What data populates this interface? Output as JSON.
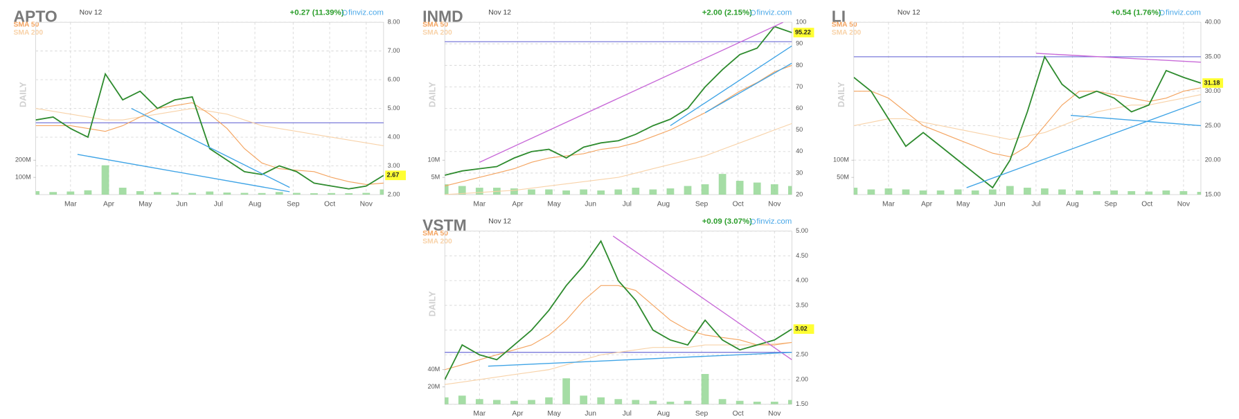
{
  "chart_data": [
    {
      "type": "line",
      "title": "APTO",
      "date": "Nov 12",
      "change": "+0.27 (11.39%)",
      "source": "finviz.com",
      "ylabel": "DAILY",
      "x": [
        0,
        1,
        2,
        3,
        4,
        5,
        6,
        7,
        8,
        9,
        10,
        11,
        12,
        13,
        14,
        15,
        16,
        17,
        18,
        19,
        20
      ],
      "xlim": [
        0,
        20
      ],
      "xticks": [
        {
          "value": 2,
          "label": "Mar"
        },
        {
          "value": 4.2,
          "label": "Apr"
        },
        {
          "value": 6.3,
          "label": "May"
        },
        {
          "value": 8.4,
          "label": "Jun"
        },
        {
          "value": 10.5,
          "label": "Jul"
        },
        {
          "value": 12.6,
          "label": "Aug"
        },
        {
          "value": 14.8,
          "label": "Sep"
        },
        {
          "value": 16.9,
          "label": "Oct"
        },
        {
          "value": 19,
          "label": "Nov"
        }
      ],
      "ylim": [
        2,
        8
      ],
      "yticks": [
        {
          "value": 2,
          "label": "2.00"
        },
        {
          "value": 3,
          "label": "3.00"
        },
        {
          "value": 4,
          "label": "4.00"
        },
        {
          "value": 5,
          "label": "5.00"
        },
        {
          "value": 6,
          "label": "6.00"
        },
        {
          "value": 7,
          "label": "7.00"
        },
        {
          "value": 8,
          "label": "8.00"
        }
      ],
      "grid": true,
      "series": [
        {
          "color": "#2e8b2e",
          "values": [
            4.6,
            4.7,
            4.3,
            4.0,
            6.2,
            5.3,
            5.6,
            5.0,
            5.3,
            5.4,
            3.6,
            3.2,
            2.8,
            2.7,
            3.0,
            2.8,
            2.4,
            2.3,
            2.2,
            2.3,
            2.67
          ]
        },
        {
          "name": "SMA 50",
          "color": "#f4a460",
          "values": [
            4.4,
            4.4,
            4.4,
            4.3,
            4.2,
            4.4,
            4.7,
            5.0,
            5.1,
            5.2,
            4.8,
            4.3,
            3.6,
            3.1,
            2.9,
            2.85,
            2.8,
            2.6,
            2.45,
            2.35,
            2.4
          ]
        },
        {
          "name": "SMA 200",
          "color": "#f8d2a8",
          "values": [
            5.0,
            4.9,
            4.8,
            4.7,
            4.6,
            4.6,
            4.7,
            4.8,
            4.9,
            5.0,
            4.9,
            4.8,
            4.6,
            4.4,
            4.3,
            4.2,
            4.1,
            4.0,
            3.9,
            3.8,
            3.7
          ]
        }
      ],
      "price_label": {
        "value": 2.67,
        "label": "2.67"
      },
      "hlines": [
        {
          "value": 4.5,
          "color": "#6b6bd6"
        }
      ],
      "trendlines": [
        {
          "color": "#3fa4e6",
          "x": [
            2.4,
            14.6
          ],
          "y": [
            3.4,
            2.1
          ]
        },
        {
          "color": "#3fa4e6",
          "x": [
            5.5,
            14.6
          ],
          "y": [
            5.0,
            2.25
          ]
        }
      ],
      "volume": {
        "color": "#8fd48f",
        "vlim": [
          0,
          1000000000
        ],
        "ticks": [
          {
            "value": 100000000,
            "label": "100M"
          },
          {
            "value": 200000000,
            "label": "200M"
          }
        ],
        "values": [
          20000000,
          15000000,
          18000000,
          25000000,
          170000000,
          40000000,
          20000000,
          15000000,
          12000000,
          10000000,
          18000000,
          12000000,
          10000000,
          9000000,
          15000000,
          10000000,
          8000000,
          9000000,
          8000000,
          10000000,
          30000000
        ]
      }
    },
    {
      "type": "line",
      "title": "INMD",
      "date": "Nov 12",
      "change": "+2.00 (2.15%)",
      "source": "finviz.com",
      "ylabel": "DAILY",
      "x": [
        0,
        1,
        2,
        3,
        4,
        5,
        6,
        7,
        8,
        9,
        10,
        11,
        12,
        13,
        14,
        15,
        16,
        17,
        18,
        19,
        20
      ],
      "xlim": [
        0,
        20
      ],
      "xticks": [
        {
          "value": 2,
          "label": "Mar"
        },
        {
          "value": 4.2,
          "label": "Apr"
        },
        {
          "value": 6.3,
          "label": "May"
        },
        {
          "value": 8.4,
          "label": "Jun"
        },
        {
          "value": 10.5,
          "label": "Jul"
        },
        {
          "value": 12.6,
          "label": "Aug"
        },
        {
          "value": 14.8,
          "label": "Sep"
        },
        {
          "value": 16.9,
          "label": "Oct"
        },
        {
          "value": 19,
          "label": "Nov"
        }
      ],
      "ylim": [
        20,
        100
      ],
      "yticks": [
        20,
        30,
        40,
        50,
        60,
        70,
        80,
        90,
        100
      ],
      "grid": true,
      "series": [
        {
          "color": "#2e8b2e",
          "values": [
            29,
            31,
            32,
            33,
            37,
            40,
            41,
            37,
            42,
            44,
            45,
            48,
            52,
            55,
            60,
            70,
            78,
            85,
            88,
            98,
            95.22
          ]
        },
        {
          "name": "SMA 50",
          "color": "#f4a460",
          "values": [
            24,
            26,
            28,
            30,
            32,
            35,
            37,
            38,
            39,
            41,
            42,
            44,
            47,
            50,
            54,
            58,
            63,
            68,
            72,
            77,
            80
          ]
        },
        {
          "name": "SMA 200",
          "color": "#f8d2a8",
          "values": [
            20,
            20.5,
            21,
            21.5,
            22,
            23,
            24,
            25,
            26,
            27,
            28,
            30,
            32,
            34,
            36,
            38,
            41,
            44,
            47,
            50,
            53
          ]
        }
      ],
      "price_label": {
        "value": 95.22,
        "label": "95.22"
      },
      "hlines": [
        {
          "value": 91,
          "color": "#6b6bd6"
        }
      ],
      "trendlines": [
        {
          "color": "#c86ad8",
          "x": [
            2,
            19.5
          ],
          "y": [
            35,
            100
          ]
        },
        {
          "color": "#3fa4e6",
          "x": [
            13,
            20
          ],
          "y": [
            52,
            89
          ]
        },
        {
          "color": "#3fa4e6",
          "x": [
            15,
            20
          ],
          "y": [
            58,
            81
          ]
        }
      ],
      "volume": {
        "color": "#8fd48f",
        "vlim": [
          0,
          50000000
        ],
        "ticks": [
          {
            "value": 5000000,
            "label": "5M"
          },
          {
            "value": 10000000,
            "label": "10M"
          }
        ],
        "values": [
          3000000,
          2500000,
          2000000,
          2000000,
          1800000,
          1500000,
          1500000,
          1200000,
          1500000,
          1200000,
          1500000,
          2000000,
          1500000,
          1800000,
          2500000,
          3000000,
          6000000,
          4000000,
          3500000,
          3000000,
          2500000
        ]
      }
    },
    {
      "type": "line",
      "title": "LI",
      "date": "Nov 12",
      "change": "+0.54 (1.76%)",
      "source": "finviz.com",
      "ylabel": "DAILY",
      "x": [
        0,
        1,
        2,
        3,
        4,
        5,
        6,
        7,
        8,
        9,
        10,
        11,
        12,
        13,
        14,
        15,
        16,
        17,
        18,
        19,
        20
      ],
      "xlim": [
        0,
        20
      ],
      "xticks": [
        {
          "value": 2,
          "label": "Mar"
        },
        {
          "value": 4.2,
          "label": "Apr"
        },
        {
          "value": 6.3,
          "label": "May"
        },
        {
          "value": 8.4,
          "label": "Jun"
        },
        {
          "value": 10.5,
          "label": "Jul"
        },
        {
          "value": 12.6,
          "label": "Aug"
        },
        {
          "value": 14.8,
          "label": "Sep"
        },
        {
          "value": 16.9,
          "label": "Oct"
        },
        {
          "value": 19,
          "label": "Nov"
        }
      ],
      "ylim": [
        15,
        40
      ],
      "yticks": [
        {
          "value": 15,
          "label": "15.00"
        },
        {
          "value": 20,
          "label": "20.00"
        },
        {
          "value": 25,
          "label": "25.00"
        },
        {
          "value": 30,
          "label": "30.00"
        },
        {
          "value": 35,
          "label": "35.00"
        },
        {
          "value": 40,
          "label": "40.00"
        }
      ],
      "grid": true,
      "series": [
        {
          "color": "#2e8b2e",
          "values": [
            32,
            30,
            26,
            22,
            24,
            22,
            20,
            18,
            16,
            20,
            27,
            35,
            31,
            29,
            30,
            29,
            27,
            28,
            33,
            32,
            31.18
          ]
        },
        {
          "name": "SMA 50",
          "color": "#f4a460",
          "values": [
            30,
            30,
            29,
            27,
            25,
            24,
            23,
            22,
            21,
            20.5,
            22,
            25,
            28,
            30,
            30,
            29.5,
            29,
            28.5,
            29,
            30,
            30.5
          ]
        },
        {
          "name": "SMA 200",
          "color": "#f8d2a8",
          "values": [
            25,
            25.5,
            26,
            26,
            25.5,
            25,
            24.5,
            24,
            23.5,
            23,
            23.5,
            24,
            25,
            26,
            27,
            27.5,
            28,
            28,
            28.5,
            29,
            29.5
          ]
        }
      ],
      "price_label": {
        "value": 31.18,
        "label": "31.18"
      },
      "hlines": [
        {
          "value": 35,
          "color": "#6b6bd6"
        }
      ],
      "trendlines": [
        {
          "color": "#c86ad8",
          "x": [
            10.5,
            20
          ],
          "y": [
            35.5,
            34.2
          ]
        },
        {
          "color": "#3fa4e6",
          "x": [
            6.5,
            20
          ],
          "y": [
            16,
            28.5
          ]
        },
        {
          "color": "#3fa4e6",
          "x": [
            12.5,
            20
          ],
          "y": [
            26.5,
            25
          ]
        }
      ],
      "volume": {
        "color": "#8fd48f",
        "vlim": [
          0,
          500000000
        ],
        "ticks": [
          {
            "value": 50000000,
            "label": "50M"
          },
          {
            "value": 100000000,
            "label": "100M"
          }
        ],
        "values": [
          20000000,
          15000000,
          18000000,
          15000000,
          12000000,
          12000000,
          15000000,
          12000000,
          15000000,
          25000000,
          20000000,
          18000000,
          15000000,
          12000000,
          10000000,
          12000000,
          10000000,
          9000000,
          12000000,
          10000000,
          8000000
        ]
      }
    },
    {
      "type": "line",
      "title": "VSTM",
      "date": "Nov 12",
      "change": "+0.09 (3.07%)",
      "source": "finviz.com",
      "ylabel": "DAILY",
      "x": [
        0,
        1,
        2,
        3,
        4,
        5,
        6,
        7,
        8,
        9,
        10,
        11,
        12,
        13,
        14,
        15,
        16,
        17,
        18,
        19,
        20
      ],
      "xlim": [
        0,
        20
      ],
      "xticks": [
        {
          "value": 2,
          "label": "Mar"
        },
        {
          "value": 4.2,
          "label": "Apr"
        },
        {
          "value": 6.3,
          "label": "May"
        },
        {
          "value": 8.4,
          "label": "Jun"
        },
        {
          "value": 10.5,
          "label": "Jul"
        },
        {
          "value": 12.6,
          "label": "Aug"
        },
        {
          "value": 14.8,
          "label": "Sep"
        },
        {
          "value": 16.9,
          "label": "Oct"
        },
        {
          "value": 19,
          "label": "Nov"
        }
      ],
      "ylim": [
        1.5,
        5
      ],
      "yticks": [
        {
          "value": 1.5,
          "label": "1.50"
        },
        {
          "value": 2,
          "label": "2.00"
        },
        {
          "value": 2.5,
          "label": "2.50"
        },
        {
          "value": 3,
          "label": "3.00"
        },
        {
          "value": 3.5,
          "label": "3.50"
        },
        {
          "value": 4,
          "label": "4.00"
        },
        {
          "value": 4.5,
          "label": "4.50"
        },
        {
          "value": 5,
          "label": "5.00"
        }
      ],
      "grid": true,
      "series": [
        {
          "color": "#2e8b2e",
          "values": [
            2.0,
            2.7,
            2.5,
            2.4,
            2.7,
            3.0,
            3.4,
            3.9,
            4.3,
            4.8,
            4.0,
            3.6,
            3.0,
            2.8,
            2.7,
            3.2,
            2.8,
            2.6,
            2.7,
            2.8,
            3.02
          ]
        },
        {
          "name": "SMA 50",
          "color": "#f4a460",
          "values": [
            2.2,
            2.3,
            2.4,
            2.5,
            2.6,
            2.7,
            2.9,
            3.2,
            3.6,
            3.9,
            3.9,
            3.8,
            3.5,
            3.2,
            3.0,
            2.9,
            2.85,
            2.8,
            2.7,
            2.7,
            2.75
          ]
        },
        {
          "name": "SMA 200",
          "color": "#f8d2a8",
          "values": [
            1.9,
            1.95,
            2.0,
            2.05,
            2.1,
            2.15,
            2.2,
            2.3,
            2.4,
            2.5,
            2.55,
            2.6,
            2.65,
            2.65,
            2.65,
            2.7,
            2.7,
            2.7,
            2.7,
            2.72,
            2.75
          ]
        }
      ],
      "price_label": {
        "value": 3.02,
        "label": "3.02"
      },
      "hlines": [
        {
          "value": 2.55,
          "color": "#6b6bd6"
        }
      ],
      "trendlines": [
        {
          "color": "#c86ad8",
          "x": [
            9.7,
            20
          ],
          "y": [
            4.9,
            2.4
          ]
        },
        {
          "color": "#3fa4e6",
          "x": [
            2.5,
            20
          ],
          "y": [
            2.27,
            2.55
          ]
        }
      ],
      "volume": {
        "color": "#8fd48f",
        "vlim": [
          0,
          200000000
        ],
        "ticks": [
          {
            "value": 20000000,
            "label": "20M"
          },
          {
            "value": 40000000,
            "label": "40M"
          }
        ],
        "values": [
          8000000,
          10000000,
          6000000,
          5000000,
          4000000,
          5000000,
          8000000,
          30000000,
          10000000,
          8000000,
          6000000,
          5000000,
          4000000,
          3000000,
          4000000,
          35000000,
          6000000,
          4000000,
          3000000,
          3000000,
          5000000
        ]
      }
    }
  ]
}
